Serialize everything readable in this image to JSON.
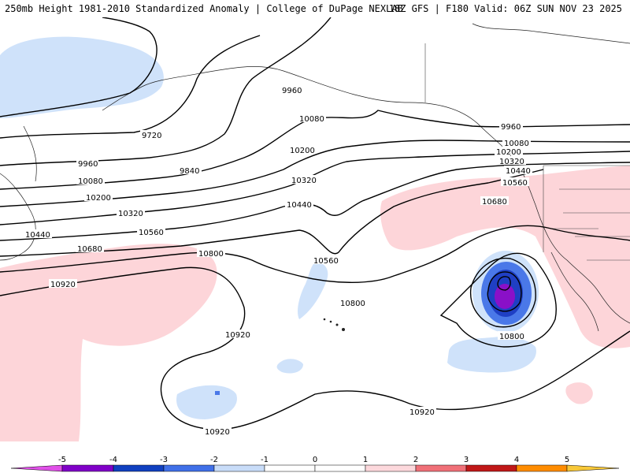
{
  "header": {
    "title_left": "250mb Height 1981-2010 Standardized Anomaly | College of DuPage NEXLAB",
    "title_right": "18Z GFS | F180 Valid: 06Z SUN NOV 23 2025"
  },
  "contour_labels": [
    "9720",
    "9960",
    "10080",
    "10200",
    "10320",
    "10440",
    "10560",
    "10680",
    "10800",
    "10920",
    "9840"
  ],
  "colorbar": {
    "tick_labels": [
      "-5",
      "-4",
      "-3",
      "-2",
      "-1",
      "0",
      "1",
      "2",
      "3",
      "4",
      "5"
    ],
    "colors": {
      "m5": "#e050e8",
      "m4": "#8000c8",
      "m3": "#1040c0",
      "m2": "#4070e8",
      "m1": "#c8dcf8",
      "zero": "#ffffff",
      "p1": "#fcd8dc",
      "p2": "#f07078",
      "p3": "#c01818",
      "p4": "#ff8c00",
      "p5": "#f8c838"
    }
  },
  "anomaly_colors": {
    "light_blue": "#cfe2fa",
    "blue": "#4a78e8",
    "dark_blue": "#1f3fc4",
    "purple": "#8a10c8",
    "light_pink": "#fdd5d9"
  }
}
